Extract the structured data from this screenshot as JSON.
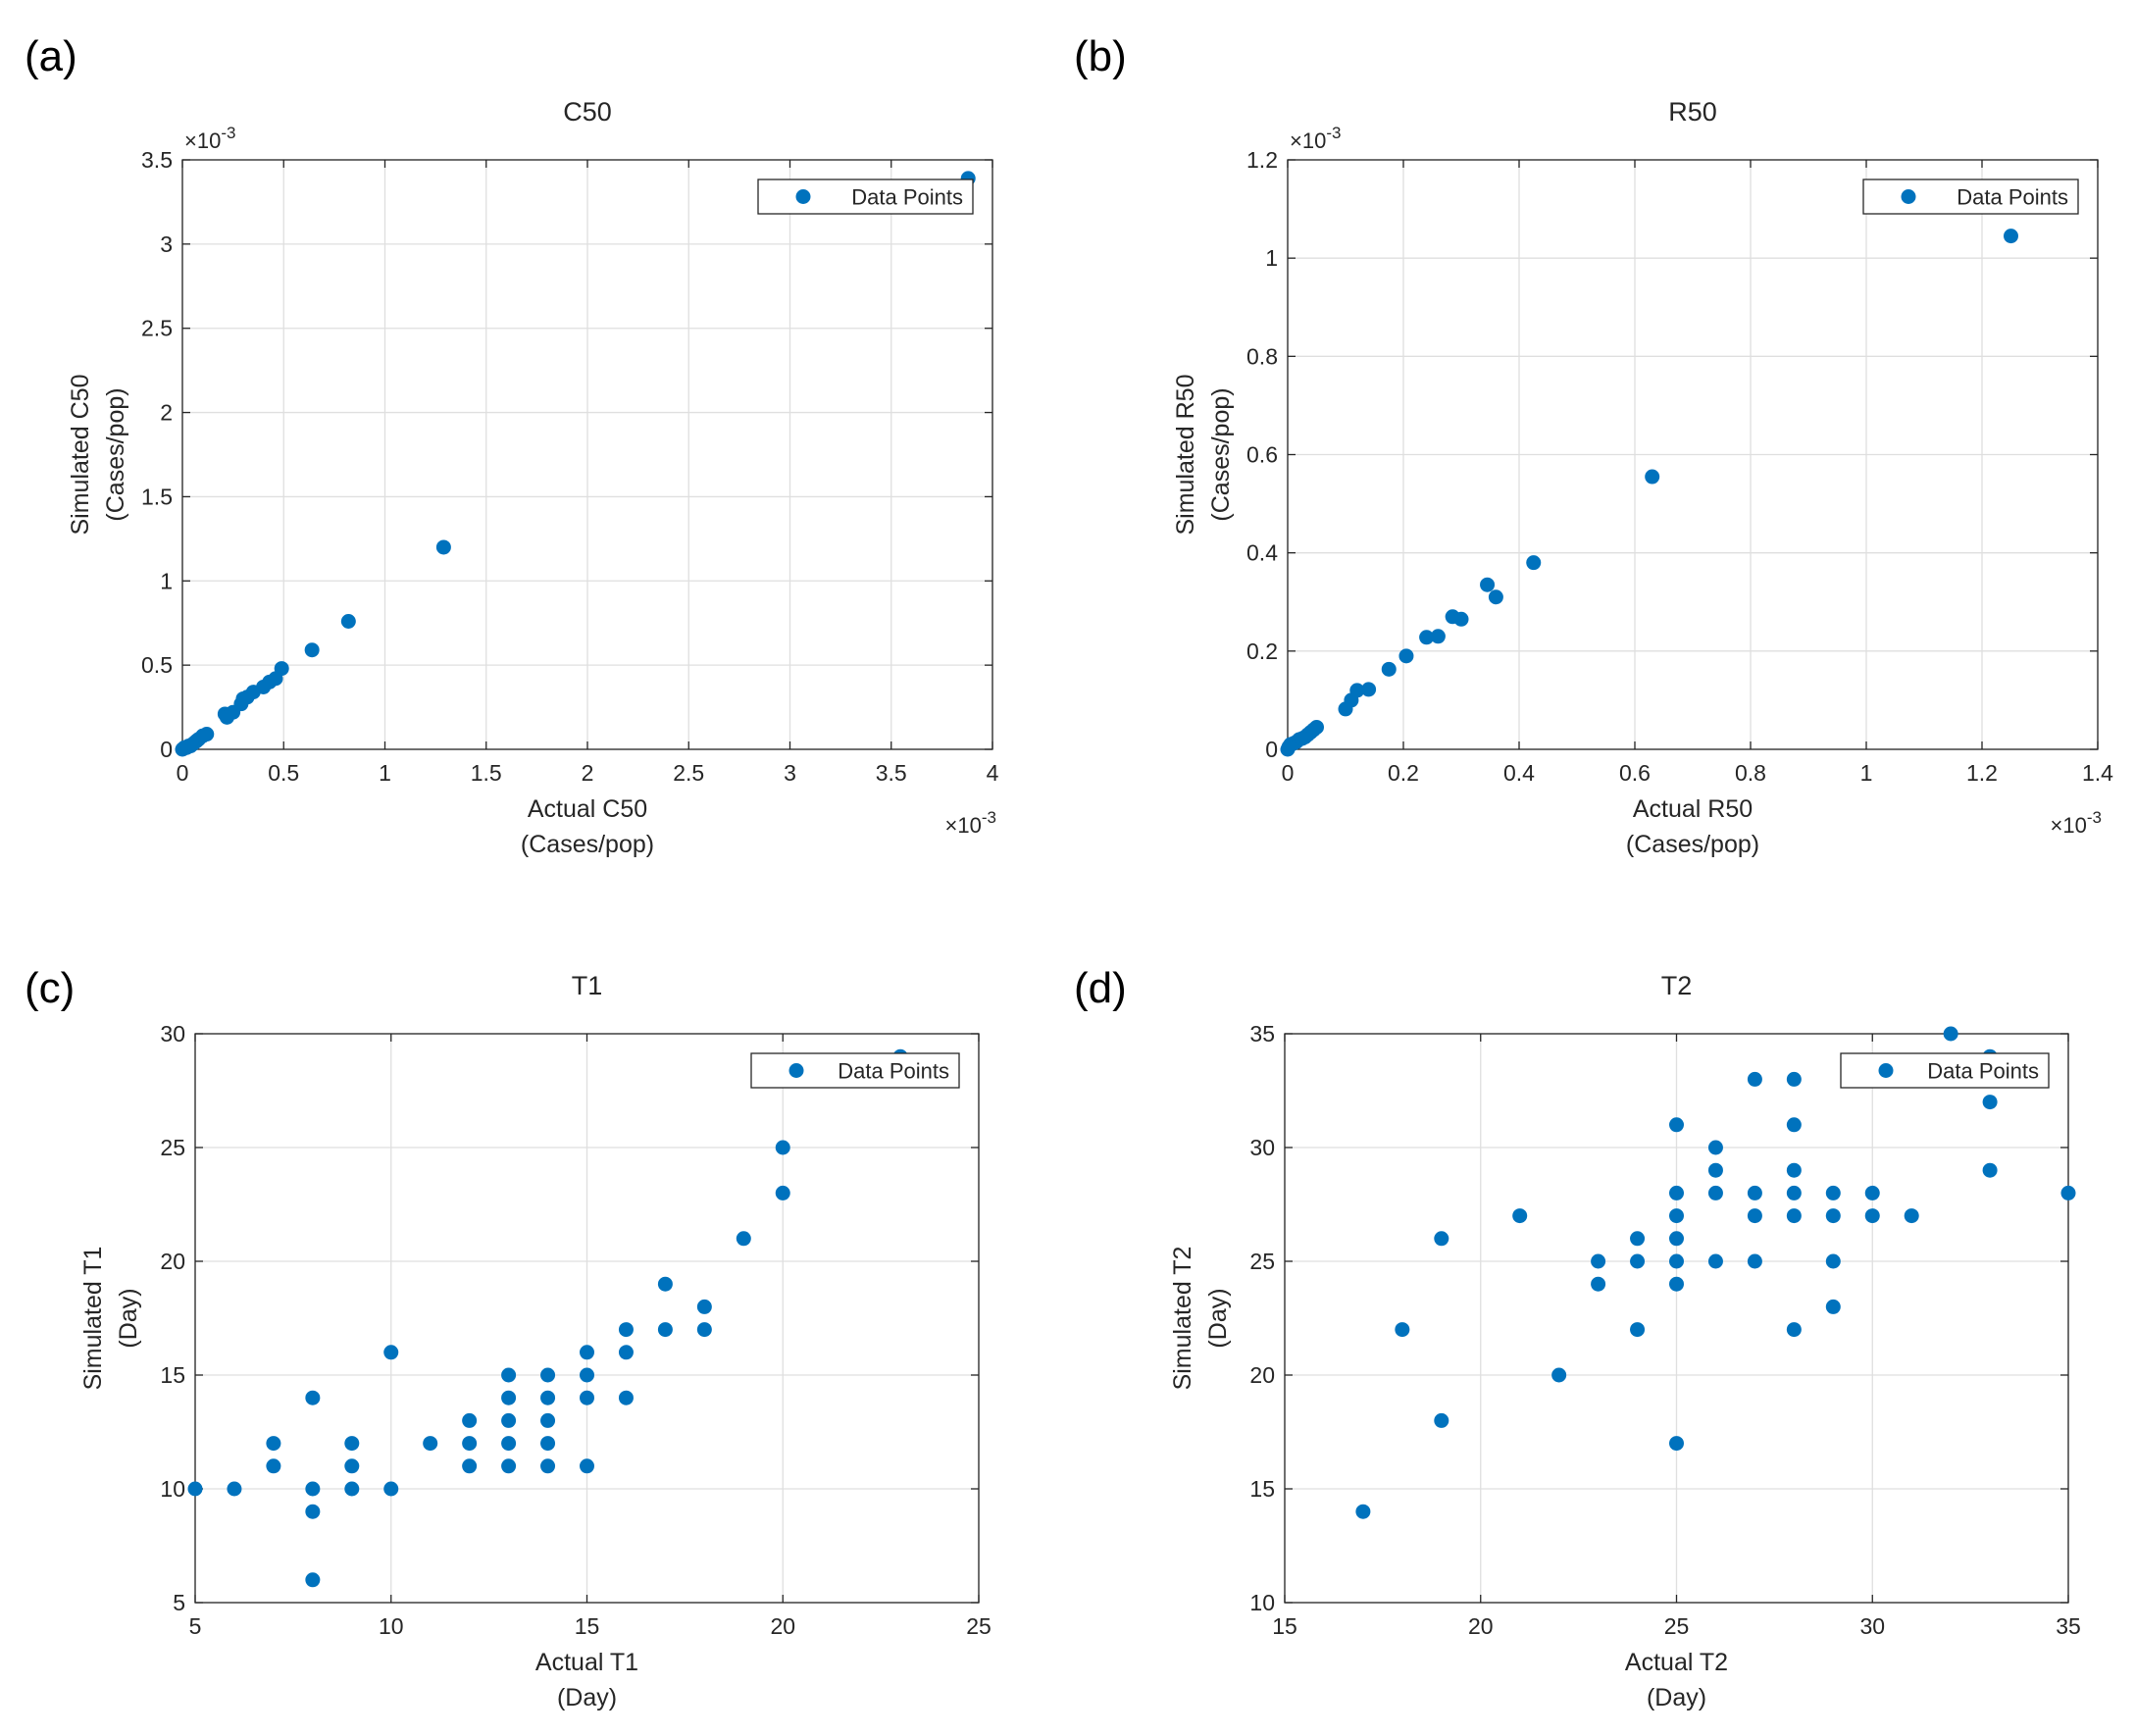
{
  "chart_data": [
    {
      "type": "scatter",
      "panel_label": "(a)",
      "title": "C50",
      "xlabel": "Actual C50",
      "xlabel_unit": "(Cases/pop)",
      "ylabel": "Simulated C50",
      "ylabel_unit": "(Cases/pop)",
      "xlim": [
        0,
        4
      ],
      "ylim": [
        0,
        3.5
      ],
      "xticks": [
        0,
        0.5,
        1,
        1.5,
        2,
        2.5,
        3,
        3.5,
        4
      ],
      "yticks": [
        0,
        0.5,
        1,
        1.5,
        2,
        2.5,
        3,
        3.5
      ],
      "xtick_labels": [
        "0",
        "0.5",
        "1",
        "1.5",
        "2",
        "2.5",
        "3",
        "3.5",
        "4"
      ],
      "ytick_labels": [
        "0",
        "0.5",
        "1",
        "1.5",
        "2",
        "2.5",
        "3",
        "3.5"
      ],
      "x_exponent": "-3",
      "y_exponent": "-3",
      "grid": true,
      "legend": {
        "label": "Data Points",
        "position": "top-right"
      },
      "series": [
        {
          "name": "Data Points",
          "points": [
            [
              0,
              0
            ],
            [
              0.01,
              0.01
            ],
            [
              0.02,
              0.01
            ],
            [
              0.03,
              0.02
            ],
            [
              0.04,
              0.02
            ],
            [
              0.05,
              0.03
            ],
            [
              0.06,
              0.04
            ],
            [
              0.07,
              0.05
            ],
            [
              0.08,
              0.06
            ],
            [
              0.1,
              0.08
            ],
            [
              0.12,
              0.09
            ],
            [
              0.21,
              0.21
            ],
            [
              0.22,
              0.19
            ],
            [
              0.25,
              0.22
            ],
            [
              0.29,
              0.27
            ],
            [
              0.3,
              0.3
            ],
            [
              0.32,
              0.31
            ],
            [
              0.35,
              0.34
            ],
            [
              0.4,
              0.37
            ],
            [
              0.43,
              0.4
            ],
            [
              0.46,
              0.42
            ],
            [
              0.49,
              0.48
            ],
            [
              0.64,
              0.59
            ],
            [
              0.82,
              0.76
            ],
            [
              1.29,
              1.2
            ],
            [
              3.88,
              3.39
            ]
          ]
        }
      ]
    },
    {
      "type": "scatter",
      "panel_label": "(b)",
      "title": "R50",
      "xlabel": "Actual R50",
      "xlabel_unit": "(Cases/pop)",
      "ylabel": "Simulated R50",
      "ylabel_unit": "(Cases/pop)",
      "xlim": [
        0,
        1.4
      ],
      "ylim": [
        0,
        1.2
      ],
      "xticks": [
        0,
        0.2,
        0.4,
        0.6,
        0.8,
        1,
        1.2,
        1.4
      ],
      "yticks": [
        0,
        0.2,
        0.4,
        0.6,
        0.8,
        1,
        1.2
      ],
      "xtick_labels": [
        "0",
        "0.2",
        "0.4",
        "0.6",
        "0.8",
        "1",
        "1.2",
        "1.4"
      ],
      "ytick_labels": [
        "0",
        "0.2",
        "0.4",
        "0.6",
        "0.8",
        "1",
        "1.2"
      ],
      "x_exponent": "-3",
      "y_exponent": "-3",
      "grid": true,
      "legend": {
        "label": "Data Points",
        "position": "top-right"
      },
      "series": [
        {
          "name": "Data Points",
          "points": [
            [
              0,
              0
            ],
            [
              0.002,
              0.005
            ],
            [
              0.005,
              0.01
            ],
            [
              0.01,
              0.012
            ],
            [
              0.015,
              0.015
            ],
            [
              0.02,
              0.02
            ],
            [
              0.025,
              0.022
            ],
            [
              0.03,
              0.025
            ],
            [
              0.035,
              0.03
            ],
            [
              0.04,
              0.035
            ],
            [
              0.045,
              0.04
            ],
            [
              0.05,
              0.045
            ],
            [
              0.1,
              0.082
            ],
            [
              0.11,
              0.1
            ],
            [
              0.12,
              0.12
            ],
            [
              0.14,
              0.122
            ],
            [
              0.175,
              0.163
            ],
            [
              0.205,
              0.19
            ],
            [
              0.24,
              0.228
            ],
            [
              0.26,
              0.23
            ],
            [
              0.285,
              0.27
            ],
            [
              0.3,
              0.265
            ],
            [
              0.345,
              0.335
            ],
            [
              0.36,
              0.31
            ],
            [
              0.425,
              0.38
            ],
            [
              0.63,
              0.555
            ],
            [
              1.25,
              1.045
            ]
          ]
        }
      ]
    },
    {
      "type": "scatter",
      "panel_label": "(c)",
      "title": "T1",
      "xlabel": "Actual T1",
      "xlabel_unit": "(Day)",
      "ylabel": "Simulated T1",
      "ylabel_unit": "(Day)",
      "xlim": [
        5,
        25
      ],
      "ylim": [
        5,
        30
      ],
      "xticks": [
        5,
        10,
        15,
        20,
        25
      ],
      "yticks": [
        5,
        10,
        15,
        20,
        25,
        30
      ],
      "xtick_labels": [
        "5",
        "10",
        "15",
        "20",
        "25"
      ],
      "ytick_labels": [
        "5",
        "10",
        "15",
        "20",
        "25",
        "30"
      ],
      "grid": true,
      "legend": {
        "label": "Data Points",
        "position": "top-right"
      },
      "series": [
        {
          "name": "Data Points",
          "points": [
            [
              5,
              10
            ],
            [
              6,
              10
            ],
            [
              7,
              11
            ],
            [
              7,
              12
            ],
            [
              8,
              6
            ],
            [
              8,
              9
            ],
            [
              8,
              10
            ],
            [
              8,
              14
            ],
            [
              9,
              10
            ],
            [
              9,
              11
            ],
            [
              9,
              12
            ],
            [
              10,
              10
            ],
            [
              10,
              16
            ],
            [
              11,
              12
            ],
            [
              12,
              11
            ],
            [
              12,
              12
            ],
            [
              12,
              13
            ],
            [
              13,
              11
            ],
            [
              13,
              12
            ],
            [
              13,
              13
            ],
            [
              13,
              14
            ],
            [
              13,
              15
            ],
            [
              14,
              11
            ],
            [
              14,
              12
            ],
            [
              14,
              13
            ],
            [
              14,
              14
            ],
            [
              14,
              15
            ],
            [
              15,
              11
            ],
            [
              15,
              14
            ],
            [
              15,
              15
            ],
            [
              15,
              16
            ],
            [
              16,
              14
            ],
            [
              16,
              16
            ],
            [
              16,
              17
            ],
            [
              17,
              17
            ],
            [
              17,
              19
            ],
            [
              18,
              17
            ],
            [
              18,
              18
            ],
            [
              19,
              21
            ],
            [
              20,
              23
            ],
            [
              20,
              25
            ],
            [
              23,
              29
            ]
          ]
        }
      ]
    },
    {
      "type": "scatter",
      "panel_label": "(d)",
      "title": "T2",
      "xlabel": "Actual T2",
      "xlabel_unit": "(Day)",
      "ylabel": "Simulated T2",
      "ylabel_unit": "(Day)",
      "xlim": [
        15,
        35
      ],
      "ylim": [
        10,
        35
      ],
      "xticks": [
        15,
        20,
        25,
        30,
        35
      ],
      "yticks": [
        10,
        15,
        20,
        25,
        30,
        35
      ],
      "xtick_labels": [
        "15",
        "20",
        "25",
        "30",
        "35"
      ],
      "ytick_labels": [
        "10",
        "15",
        "20",
        "25",
        "30",
        "35"
      ],
      "grid": true,
      "legend": {
        "label": "Data Points",
        "position": "top-right"
      },
      "series": [
        {
          "name": "Data Points",
          "points": [
            [
              17,
              14
            ],
            [
              18,
              22
            ],
            [
              19,
              18
            ],
            [
              19,
              26
            ],
            [
              21,
              27
            ],
            [
              22,
              20
            ],
            [
              23,
              24
            ],
            [
              23,
              25
            ],
            [
              24,
              22
            ],
            [
              24,
              25
            ],
            [
              24,
              26
            ],
            [
              25,
              17
            ],
            [
              25,
              24
            ],
            [
              25,
              25
            ],
            [
              25,
              26
            ],
            [
              25,
              27
            ],
            [
              25,
              28
            ],
            [
              25,
              31
            ],
            [
              26,
              25
            ],
            [
              26,
              28
            ],
            [
              26,
              29
            ],
            [
              26,
              30
            ],
            [
              27,
              25
            ],
            [
              27,
              27
            ],
            [
              27,
              28
            ],
            [
              27,
              33
            ],
            [
              28,
              22
            ],
            [
              28,
              27
            ],
            [
              28,
              28
            ],
            [
              28,
              29
            ],
            [
              28,
              31
            ],
            [
              28,
              33
            ],
            [
              29,
              23
            ],
            [
              29,
              25
            ],
            [
              29,
              27
            ],
            [
              29,
              28
            ],
            [
              30,
              27
            ],
            [
              30,
              28
            ],
            [
              31,
              27
            ],
            [
              32,
              35
            ],
            [
              33,
              29
            ],
            [
              33,
              32
            ],
            [
              33,
              34
            ],
            [
              35,
              28
            ]
          ]
        }
      ]
    }
  ]
}
